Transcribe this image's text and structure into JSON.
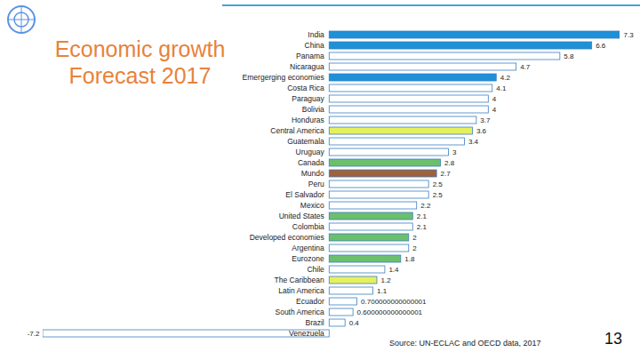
{
  "chart_data": {
    "type": "bar",
    "orientation": "horizontal",
    "title": "Economic growth Forecast 2017",
    "categories": [
      "India",
      "China",
      "Panama",
      "Nicaragua",
      "Emergerging economies",
      "Costa Rica",
      "Paraguay",
      "Bolivia",
      "Honduras",
      "Central America",
      "Guatemala",
      "Uruguay",
      "Canada",
      "Mundo",
      "Peru",
      "El Salvador",
      "Mexico",
      "United States",
      "Colombia",
      "Developed economies",
      "Argentina",
      "Eurozone",
      "Chile",
      "The Caribbean",
      "Latin America",
      "Ecuador",
      "South America",
      "Brazil",
      "Venezuela"
    ],
    "values": [
      7.3,
      6.6,
      5.8,
      4.7,
      4.2,
      4.1,
      4,
      4,
      3.7,
      3.6,
      3.4,
      3,
      2.8,
      2.7,
      2.5,
      2.5,
      2.2,
      2.1,
      2.1,
      2,
      2,
      1.8,
      1.4,
      1.2,
      1.1,
      0.700000000000001,
      0.600000000000001,
      0.4,
      -7.2
    ],
    "value_labels": [
      "7.3",
      "6.6",
      "5.8",
      "4.7",
      "4.2",
      "4.1",
      "4",
      "4",
      "3.7",
      "3.6",
      "3.4",
      "3",
      "2.8",
      "2.7",
      "2.5",
      "2.5",
      "2.2",
      "2.1",
      "2.1",
      "2",
      "2",
      "1.8",
      "1.4",
      "1.2",
      "1.1",
      "0.700000000000001",
      "0.600000000000001",
      "0.4",
      "-7.2"
    ],
    "colors": [
      "#1e90d8",
      "#1e90d8",
      "#ffffff",
      "#ffffff",
      "#1e90d8",
      "#ffffff",
      "#ffffff",
      "#ffffff",
      "#ffffff",
      "#e6f05c",
      "#ffffff",
      "#ffffff",
      "#6cbf6c",
      "#a0603a",
      "#ffffff",
      "#ffffff",
      "#ffffff",
      "#6cbf6c",
      "#ffffff",
      "#6cbf6c",
      "#ffffff",
      "#6cbf6c",
      "#ffffff",
      "#e6f05c",
      "#ffffff",
      "#ffffff",
      "#ffffff",
      "#ffffff",
      "#ffffff"
    ],
    "xlim": [
      -7.2,
      7.3
    ],
    "tick_labels": false,
    "grid": false,
    "data_labels": true,
    "annotations": [
      "Source: UN-ECLAC and OECD data, 2017",
      "13"
    ]
  }
}
